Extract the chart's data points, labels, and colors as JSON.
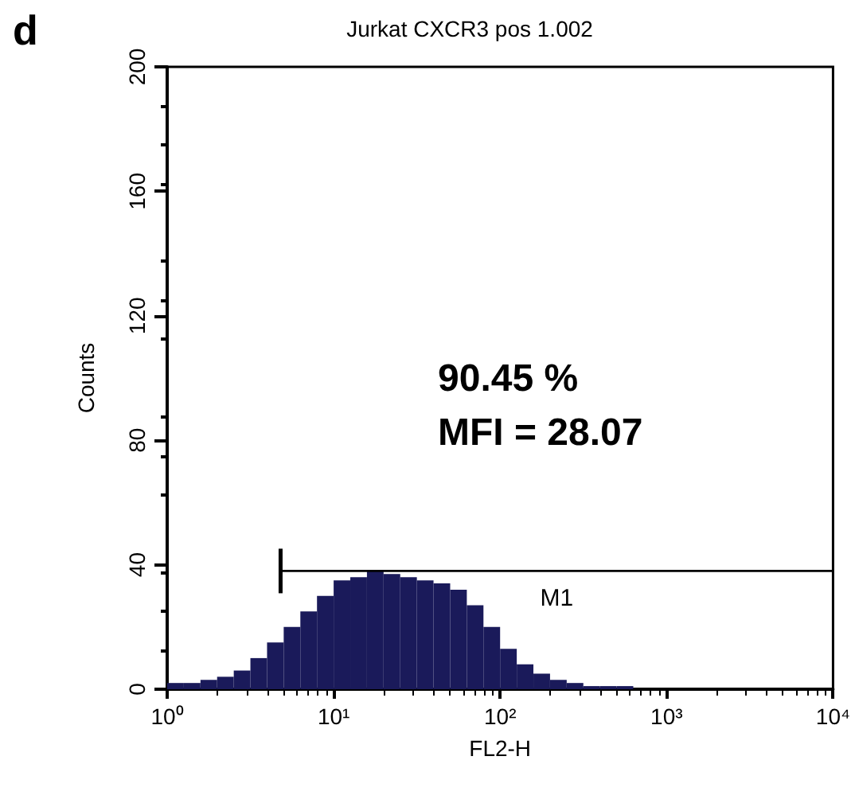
{
  "chart_data": {
    "type": "histogram",
    "title": "Jurkat CXCR3 pos 1.002",
    "xlabel": "FL2-H",
    "ylabel": "Counts",
    "annotations": [
      "d",
      "90.45 %",
      "MFI = 28.07"
    ],
    "bins": [
      1,
      1.259,
      1.585,
      1.995,
      2.512,
      3.162,
      3.981,
      5.012,
      6.31,
      7.943,
      10,
      12.59,
      15.85,
      19.95,
      25.12,
      31.62,
      39.81,
      50.12,
      63.1,
      79.43,
      100,
      125.9,
      158.5,
      199.5,
      251.2,
      316.2,
      398.1,
      501.2,
      631,
      794.3,
      1000
    ],
    "series": [
      {
        "color": "#1a1a5a",
        "values": [
          2,
          2,
          3,
          4,
          6,
          10,
          15,
          20,
          25,
          30,
          35,
          36,
          38,
          37,
          36,
          35,
          34,
          32,
          27,
          20,
          13,
          8,
          5,
          3,
          2,
          1,
          1,
          1,
          0,
          0
        ]
      },
      {
        "type": "line",
        "name": "M1",
        "color": "#000000",
        "x": [
          4.8,
          10000
        ],
        "values": [
          38,
          38
        ]
      }
    ],
    "log": "x",
    "grid": false,
    "xlim": [
      1,
      10000
    ],
    "xticks": [
      {
        "value": 1,
        "label": "10⁰"
      },
      {
        "value": 10,
        "label": "10¹"
      },
      {
        "value": 100,
        "label": "10²"
      },
      {
        "value": 1000,
        "label": "10³"
      },
      {
        "value": 10000,
        "label": "10⁴"
      }
    ],
    "ylim": [
      0,
      200
    ],
    "yticks": [
      0,
      40,
      80,
      120,
      160,
      200
    ]
  }
}
